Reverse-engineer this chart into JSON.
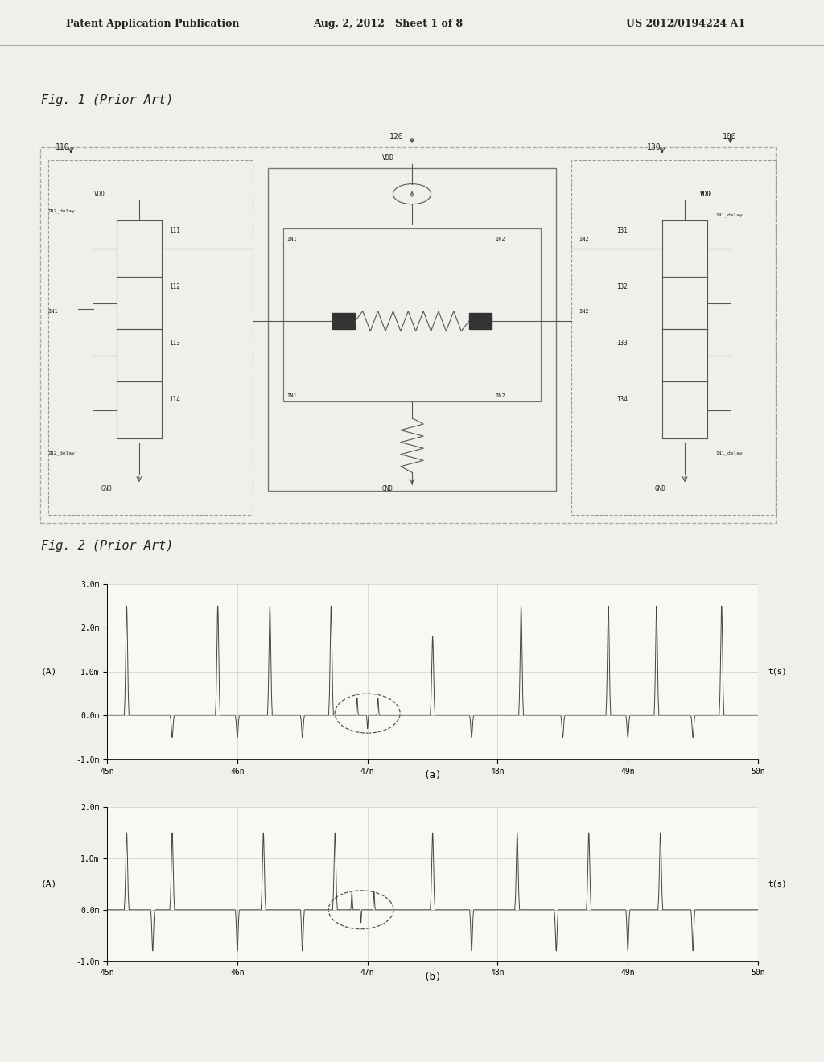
{
  "bg_color": "#f0f0eb",
  "header_text1": "Patent Application Publication",
  "header_text2": "Aug. 2, 2012   Sheet 1 of 8",
  "header_text3": "US 2012/0194224 A1",
  "fig1_label": "Fig. 1 (Prior Art)",
  "fig2_label": "Fig. 2 (Prior Art)",
  "fig2_sub_a": "(a)",
  "fig2_sub_b": "(b)",
  "plot_a_ylabel": "(A)",
  "plot_b_ylabel": "(A)",
  "plot_a_xlabel": "t(s)",
  "plot_b_xlabel": "t(s)",
  "box_color": "#888888",
  "line_color": "#555555",
  "text_color": "#222222"
}
